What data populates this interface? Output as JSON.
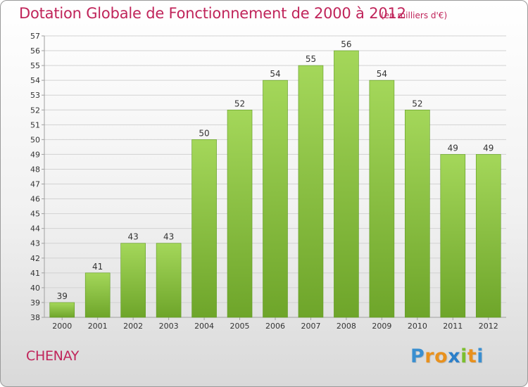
{
  "header": {
    "title": "Dotation Globale de Fonctionnement de 2000 à 2012",
    "unit": "(en milliers d'€)"
  },
  "location": "CHENAY",
  "brand": {
    "name": "Proxiti",
    "letters": [
      "P",
      "r",
      "o",
      "x",
      "i",
      "t",
      "i"
    ],
    "letter_colors": [
      "#3a8fd0",
      "#e8911e",
      "#e8911e",
      "#2b7fc9",
      "#7cbf2e",
      "#e8911e",
      "#3a8fd0"
    ]
  },
  "colors": {
    "bar_light": "#a4d75a",
    "bar_dark": "#6ea52a",
    "accent": "#c0245a",
    "grid": "#d2d2d2",
    "axis": "#a0a0a0"
  },
  "chart_data": {
    "type": "bar",
    "title": "Dotation Globale de Fonctionnement de 2000 à 2012",
    "subtitle": "(en milliers d'€)",
    "xlabel": "",
    "ylabel": "",
    "categories": [
      "2000",
      "2001",
      "2002",
      "2003",
      "2004",
      "2005",
      "2006",
      "2007",
      "2008",
      "2009",
      "2010",
      "2011",
      "2012"
    ],
    "values": [
      39,
      41,
      43,
      43,
      50,
      52,
      54,
      55,
      56,
      54,
      52,
      49,
      49
    ],
    "ylim": [
      38,
      57
    ],
    "yticks": [
      38,
      39,
      40,
      41,
      42,
      43,
      44,
      45,
      46,
      47,
      48,
      49,
      50,
      51,
      52,
      53,
      54,
      55,
      56,
      57
    ],
    "grid": true,
    "legend": "none",
    "data_labels": true
  }
}
